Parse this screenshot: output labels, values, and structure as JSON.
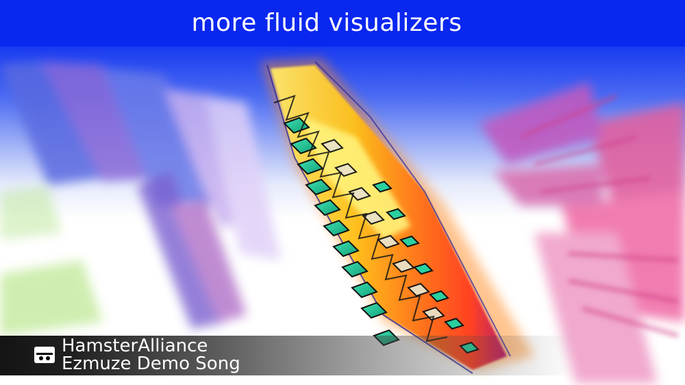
{
  "banner": {
    "title": "more fluid visualizers"
  },
  "now_playing": {
    "icon": "hamster-logo-icon",
    "artist": "HamsterAlliance",
    "song": "Ezmuze Demo Song"
  },
  "colors": {
    "banner_blue": "#0a27f0",
    "text": "#ffffff"
  }
}
